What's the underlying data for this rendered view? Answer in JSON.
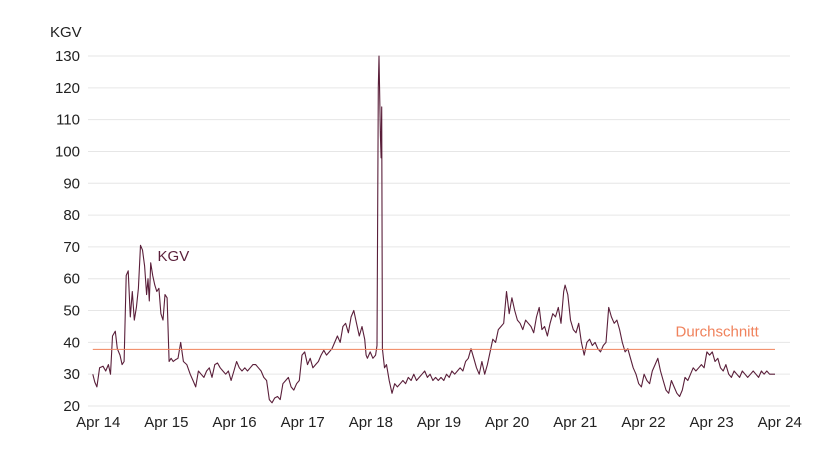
{
  "chart_data": {
    "type": "line",
    "ylabel": "KGV",
    "xlabel": "",
    "ylim": [
      20,
      130
    ],
    "yticks": [
      20,
      30,
      40,
      50,
      60,
      70,
      80,
      90,
      100,
      110,
      120,
      130
    ],
    "xlim": [
      2014.1,
      2024.4
    ],
    "xticks": [
      {
        "label": "Apr 14",
        "x": 2014.25
      },
      {
        "label": "Apr 15",
        "x": 2015.25
      },
      {
        "label": "Apr 16",
        "x": 2016.25
      },
      {
        "label": "Apr 17",
        "x": 2017.25
      },
      {
        "label": "Apr 18",
        "x": 2018.25
      },
      {
        "label": "Apr 19",
        "x": 2019.25
      },
      {
        "label": "Apr 20",
        "x": 2020.25
      },
      {
        "label": "Apr 21",
        "x": 2021.25
      },
      {
        "label": "Apr 22",
        "x": 2022.25
      },
      {
        "label": "Apr 23",
        "x": 2023.25
      },
      {
        "label": "Apr 24",
        "x": 2024.25
      }
    ],
    "grid": true,
    "series": [
      {
        "name": "KGV",
        "color": "#5a1f3a",
        "points": [
          [
            2014.17,
            30
          ],
          [
            2014.2,
            27.5
          ],
          [
            2014.23,
            26
          ],
          [
            2014.27,
            32
          ],
          [
            2014.32,
            32.5
          ],
          [
            2014.36,
            31
          ],
          [
            2014.4,
            33
          ],
          [
            2014.43,
            30
          ],
          [
            2014.46,
            42
          ],
          [
            2014.5,
            43.5
          ],
          [
            2014.53,
            38
          ],
          [
            2014.57,
            36
          ],
          [
            2014.6,
            33
          ],
          [
            2014.63,
            34
          ],
          [
            2014.66,
            61
          ],
          [
            2014.69,
            62.5
          ],
          [
            2014.72,
            48
          ],
          [
            2014.75,
            56
          ],
          [
            2014.78,
            47
          ],
          [
            2014.81,
            51
          ],
          [
            2014.84,
            57
          ],
          [
            2014.87,
            70.5
          ],
          [
            2014.9,
            69
          ],
          [
            2014.93,
            64
          ],
          [
            2014.96,
            55
          ],
          [
            2014.98,
            60
          ],
          [
            2015.0,
            53
          ],
          [
            2015.02,
            65
          ],
          [
            2015.05,
            61
          ],
          [
            2015.08,
            58
          ],
          [
            2015.11,
            56
          ],
          [
            2015.14,
            57
          ],
          [
            2015.17,
            49
          ],
          [
            2015.2,
            47
          ],
          [
            2015.23,
            55
          ],
          [
            2015.26,
            54
          ],
          [
            2015.29,
            34
          ],
          [
            2015.32,
            35
          ],
          [
            2015.35,
            34
          ],
          [
            2015.38,
            34.5
          ],
          [
            2015.42,
            35
          ],
          [
            2015.46,
            40
          ],
          [
            2015.5,
            34
          ],
          [
            2015.55,
            33
          ],
          [
            2015.6,
            30
          ],
          [
            2015.64,
            28
          ],
          [
            2015.68,
            26
          ],
          [
            2015.72,
            31
          ],
          [
            2015.76,
            30
          ],
          [
            2015.8,
            29
          ],
          [
            2015.84,
            31
          ],
          [
            2015.88,
            32
          ],
          [
            2015.92,
            29
          ],
          [
            2015.96,
            33
          ],
          [
            2016.0,
            33.5
          ],
          [
            2016.04,
            32
          ],
          [
            2016.08,
            31
          ],
          [
            2016.12,
            30
          ],
          [
            2016.16,
            31
          ],
          [
            2016.2,
            28
          ],
          [
            2016.24,
            31
          ],
          [
            2016.28,
            34
          ],
          [
            2016.32,
            32
          ],
          [
            2016.36,
            31
          ],
          [
            2016.4,
            32
          ],
          [
            2016.44,
            31
          ],
          [
            2016.48,
            32
          ],
          [
            2016.52,
            33
          ],
          [
            2016.56,
            33
          ],
          [
            2016.6,
            32
          ],
          [
            2016.64,
            31
          ],
          [
            2016.68,
            29
          ],
          [
            2016.72,
            28
          ],
          [
            2016.76,
            22
          ],
          [
            2016.8,
            21
          ],
          [
            2016.84,
            22.5
          ],
          [
            2016.88,
            23
          ],
          [
            2016.92,
            22
          ],
          [
            2016.96,
            27
          ],
          [
            2017.0,
            28
          ],
          [
            2017.04,
            29
          ],
          [
            2017.08,
            26
          ],
          [
            2017.12,
            25
          ],
          [
            2017.16,
            27
          ],
          [
            2017.2,
            28
          ],
          [
            2017.24,
            36
          ],
          [
            2017.28,
            37
          ],
          [
            2017.32,
            33
          ],
          [
            2017.36,
            35
          ],
          [
            2017.4,
            32
          ],
          [
            2017.44,
            33
          ],
          [
            2017.48,
            34
          ],
          [
            2017.52,
            36
          ],
          [
            2017.56,
            37.5
          ],
          [
            2017.6,
            36
          ],
          [
            2017.64,
            37
          ],
          [
            2017.68,
            38
          ],
          [
            2017.72,
            40
          ],
          [
            2017.76,
            42
          ],
          [
            2017.8,
            40
          ],
          [
            2017.84,
            45
          ],
          [
            2017.88,
            46
          ],
          [
            2017.92,
            43
          ],
          [
            2017.96,
            48
          ],
          [
            2018.0,
            50
          ],
          [
            2018.04,
            46
          ],
          [
            2018.08,
            42
          ],
          [
            2018.12,
            45
          ],
          [
            2018.16,
            41
          ],
          [
            2018.18,
            36
          ],
          [
            2018.2,
            35
          ],
          [
            2018.24,
            37
          ],
          [
            2018.28,
            35
          ],
          [
            2018.32,
            36
          ],
          [
            2018.34,
            39
          ],
          [
            2018.36,
            120
          ],
          [
            2018.37,
            130
          ],
          [
            2018.39,
            105
          ],
          [
            2018.4,
            98
          ],
          [
            2018.41,
            114
          ],
          [
            2018.42,
            38
          ],
          [
            2018.45,
            32
          ],
          [
            2018.48,
            33
          ],
          [
            2018.52,
            28
          ],
          [
            2018.56,
            24
          ],
          [
            2018.6,
            27
          ],
          [
            2018.64,
            26
          ],
          [
            2018.68,
            27
          ],
          [
            2018.72,
            28
          ],
          [
            2018.76,
            27
          ],
          [
            2018.8,
            29
          ],
          [
            2018.84,
            28
          ],
          [
            2018.88,
            30
          ],
          [
            2018.92,
            28
          ],
          [
            2018.96,
            29
          ],
          [
            2019.0,
            30
          ],
          [
            2019.04,
            31
          ],
          [
            2019.08,
            29
          ],
          [
            2019.12,
            30
          ],
          [
            2019.16,
            28
          ],
          [
            2019.2,
            29
          ],
          [
            2019.24,
            28
          ],
          [
            2019.28,
            29
          ],
          [
            2019.32,
            28
          ],
          [
            2019.36,
            30
          ],
          [
            2019.4,
            29
          ],
          [
            2019.44,
            31
          ],
          [
            2019.48,
            30
          ],
          [
            2019.52,
            31
          ],
          [
            2019.56,
            32
          ],
          [
            2019.6,
            31
          ],
          [
            2019.64,
            34
          ],
          [
            2019.68,
            35
          ],
          [
            2019.72,
            38
          ],
          [
            2019.76,
            35
          ],
          [
            2019.8,
            32
          ],
          [
            2019.84,
            30
          ],
          [
            2019.88,
            34
          ],
          [
            2019.92,
            30
          ],
          [
            2019.96,
            33
          ],
          [
            2020.0,
            37
          ],
          [
            2020.04,
            41
          ],
          [
            2020.08,
            40
          ],
          [
            2020.12,
            44
          ],
          [
            2020.16,
            45
          ],
          [
            2020.2,
            46
          ],
          [
            2020.24,
            56
          ],
          [
            2020.28,
            49
          ],
          [
            2020.32,
            54
          ],
          [
            2020.36,
            50
          ],
          [
            2020.4,
            47
          ],
          [
            2020.44,
            46
          ],
          [
            2020.48,
            44
          ],
          [
            2020.52,
            47
          ],
          [
            2020.56,
            46
          ],
          [
            2020.6,
            45
          ],
          [
            2020.64,
            43
          ],
          [
            2020.68,
            48
          ],
          [
            2020.72,
            51
          ],
          [
            2020.76,
            44
          ],
          [
            2020.8,
            45
          ],
          [
            2020.84,
            42
          ],
          [
            2020.88,
            46
          ],
          [
            2020.92,
            49
          ],
          [
            2020.96,
            48
          ],
          [
            2021.0,
            51
          ],
          [
            2021.04,
            46
          ],
          [
            2021.08,
            56
          ],
          [
            2021.1,
            58
          ],
          [
            2021.14,
            55
          ],
          [
            2021.18,
            47
          ],
          [
            2021.22,
            44
          ],
          [
            2021.26,
            43
          ],
          [
            2021.3,
            46
          ],
          [
            2021.34,
            40
          ],
          [
            2021.38,
            36
          ],
          [
            2021.42,
            40
          ],
          [
            2021.46,
            41
          ],
          [
            2021.5,
            39
          ],
          [
            2021.54,
            40
          ],
          [
            2021.58,
            38
          ],
          [
            2021.62,
            37
          ],
          [
            2021.66,
            39
          ],
          [
            2021.7,
            40
          ],
          [
            2021.74,
            51
          ],
          [
            2021.78,
            48
          ],
          [
            2021.82,
            46
          ],
          [
            2021.86,
            47
          ],
          [
            2021.9,
            44
          ],
          [
            2021.94,
            40
          ],
          [
            2021.98,
            37
          ],
          [
            2022.02,
            38
          ],
          [
            2022.06,
            35
          ],
          [
            2022.1,
            32
          ],
          [
            2022.14,
            30
          ],
          [
            2022.18,
            27
          ],
          [
            2022.22,
            26
          ],
          [
            2022.26,
            30
          ],
          [
            2022.3,
            28
          ],
          [
            2022.34,
            27
          ],
          [
            2022.38,
            31
          ],
          [
            2022.42,
            33
          ],
          [
            2022.46,
            35
          ],
          [
            2022.5,
            31
          ],
          [
            2022.54,
            28
          ],
          [
            2022.58,
            25
          ],
          [
            2022.62,
            24
          ],
          [
            2022.66,
            28
          ],
          [
            2022.7,
            26
          ],
          [
            2022.74,
            24
          ],
          [
            2022.78,
            23
          ],
          [
            2022.82,
            25
          ],
          [
            2022.86,
            29
          ],
          [
            2022.9,
            28
          ],
          [
            2022.94,
            30
          ],
          [
            2022.98,
            32
          ],
          [
            2023.02,
            31
          ],
          [
            2023.06,
            32
          ],
          [
            2023.1,
            33
          ],
          [
            2023.14,
            32
          ],
          [
            2023.18,
            37
          ],
          [
            2023.22,
            36
          ],
          [
            2023.26,
            37
          ],
          [
            2023.3,
            34
          ],
          [
            2023.34,
            35
          ],
          [
            2023.38,
            32
          ],
          [
            2023.42,
            31
          ],
          [
            2023.46,
            33
          ],
          [
            2023.5,
            30
          ],
          [
            2023.54,
            29
          ],
          [
            2023.58,
            31
          ],
          [
            2023.62,
            30
          ],
          [
            2023.66,
            29
          ],
          [
            2023.7,
            31
          ],
          [
            2023.74,
            30
          ],
          [
            2023.78,
            29
          ],
          [
            2023.82,
            30
          ],
          [
            2023.86,
            31
          ],
          [
            2023.9,
            30
          ],
          [
            2023.94,
            29
          ],
          [
            2023.98,
            31
          ],
          [
            2024.02,
            30
          ],
          [
            2024.06,
            31
          ],
          [
            2024.1,
            30
          ],
          [
            2024.14,
            30
          ],
          [
            2024.18,
            30
          ]
        ]
      },
      {
        "name": "Durchschnitt",
        "color": "#f0825c",
        "points": [
          [
            2014.17,
            37.8
          ],
          [
            2024.18,
            37.8
          ]
        ]
      }
    ],
    "annotations": [
      {
        "text": "KGV",
        "series": 0,
        "x": 2015.12,
        "y": 65.5
      },
      {
        "text": "Durchschnitt",
        "series": 1,
        "x": 2022.72,
        "y": 41.8
      }
    ]
  }
}
